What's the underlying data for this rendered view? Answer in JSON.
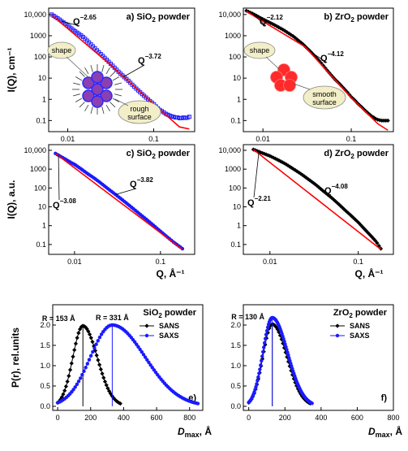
{
  "chart_data": [
    {
      "id": "a",
      "type": "scatter",
      "title": "a) SiO2 powder",
      "ylabel": "I(Q), cm⁻¹",
      "xlabel": "",
      "xscale": "log",
      "yscale": "log",
      "xlim": [
        0.006,
        0.3
      ],
      "ylim": [
        0.03,
        20000
      ],
      "xticks": [
        "0.01",
        "0.1"
      ],
      "yticks": [
        "0.1",
        "1",
        "10",
        "100",
        "1000",
        "10,000"
      ],
      "series": [
        {
          "name": "data",
          "color": "#1a1aff",
          "marker": "square",
          "x": [
            0.0065,
            0.008,
            0.01,
            0.012,
            0.015,
            0.018,
            0.022,
            0.027,
            0.033,
            0.04,
            0.05,
            0.06,
            0.07,
            0.08,
            0.09,
            0.1,
            0.11,
            0.12,
            0.13,
            0.14,
            0.15,
            0.16,
            0.17,
            0.18,
            0.19,
            0.2,
            0.21,
            0.22,
            0.24,
            0.26
          ],
          "y": [
            10000,
            5800,
            3000,
            1700,
            900,
            450,
            200,
            90,
            40,
            18,
            8,
            3.8,
            2.1,
            1.3,
            0.85,
            0.6,
            0.4,
            0.3,
            0.25,
            0.2,
            0.18,
            0.16,
            0.15,
            0.14,
            0.14,
            0.13,
            0.13,
            0.14,
            0.13,
            0.15
          ]
        },
        {
          "name": "fit",
          "color": "#ff0000",
          "marker": "line",
          "x": [
            0.0065,
            0.03,
            0.1,
            0.2,
            0.26
          ],
          "y": [
            9500,
            50,
            0.6,
            0.05,
            0.04
          ]
        }
      ],
      "annotations": [
        {
          "base": "Q",
          "exp": "−2.65"
        },
        {
          "base": "Q",
          "exp": "−3.72"
        }
      ],
      "bubbles": [
        "shape",
        "rough surface"
      ]
    },
    {
      "id": "b",
      "type": "scatter",
      "title": "b) ZrO2 powder",
      "ylabel": "",
      "xlabel": "",
      "xscale": "log",
      "yscale": "log",
      "xlim": [
        0.006,
        0.3
      ],
      "ylim": [
        0.03,
        20000
      ],
      "xticks": [
        "0.01",
        "0.1"
      ],
      "yticks": [
        "0.1",
        "1",
        "10",
        "100",
        "1000",
        "10,000"
      ],
      "series": [
        {
          "name": "data",
          "color": "#000000",
          "marker": "diamond",
          "x": [
            0.0065,
            0.008,
            0.01,
            0.013,
            0.017,
            0.022,
            0.028,
            0.035,
            0.045,
            0.055,
            0.065,
            0.075,
            0.09,
            0.1,
            0.11,
            0.12,
            0.13,
            0.14,
            0.15,
            0.16,
            0.17,
            0.18,
            0.19,
            0.2,
            0.22,
            0.24,
            0.26
          ],
          "y": [
            15000,
            10000,
            6000,
            3500,
            1900,
            950,
            420,
            170,
            55,
            20,
            9,
            5,
            2.2,
            1.3,
            0.9,
            0.6,
            0.45,
            0.33,
            0.25,
            0.2,
            0.16,
            0.14,
            0.12,
            0.11,
            0.1,
            0.1,
            0.1
          ]
        },
        {
          "name": "fit",
          "color": "#ff0000",
          "marker": "line",
          "x": [
            0.0065,
            0.03,
            0.1,
            0.2,
            0.26
          ],
          "y": [
            14000,
            300,
            1.2,
            0.07,
            0.035
          ]
        }
      ],
      "annotations": [
        {
          "base": "Q",
          "exp": "−2.12"
        },
        {
          "base": "Q",
          "exp": "−4.12"
        }
      ],
      "bubbles": [
        "shape",
        "smooth surface"
      ]
    },
    {
      "id": "c",
      "type": "scatter",
      "title": "c) SiO2 powder",
      "ylabel": "I(Q),  a.u.",
      "xlabel": "Q,  Å⁻¹",
      "xscale": "log",
      "yscale": "log",
      "xlim": [
        0.005,
        0.25
      ],
      "ylim": [
        0.03,
        20000
      ],
      "xticks": [
        "0.01",
        "0.1"
      ],
      "yticks": [
        "0.1",
        "1",
        "10",
        "100",
        "1000",
        "10,000"
      ],
      "series": [
        {
          "name": "data",
          "color": "#1a1aff",
          "marker": "circle",
          "x": [
            0.006,
            0.007,
            0.008,
            0.009,
            0.01,
            0.012,
            0.014,
            0.017,
            0.02,
            0.025,
            0.03,
            0.035,
            0.04,
            0.05,
            0.06,
            0.07,
            0.08,
            0.1,
            0.12,
            0.14,
            0.16,
            0.18
          ],
          "y": [
            6800,
            4500,
            3200,
            2300,
            1800,
            1000,
            600,
            330,
            190,
            85,
            45,
            26,
            16,
            7,
            3.5,
            2,
            1.2,
            0.5,
            0.25,
            0.14,
            0.09,
            0.06
          ]
        },
        {
          "name": "fit",
          "color": "#ff0000",
          "marker": "line",
          "x": [
            0.006,
            0.18
          ],
          "y": [
            6800,
            0.055
          ]
        }
      ],
      "annotations": [
        {
          "base": "Q",
          "exp": "−3.08"
        },
        {
          "base": "Q",
          "exp": "−3.82"
        }
      ]
    },
    {
      "id": "d",
      "type": "scatter",
      "title": "d) ZrO2 powder",
      "ylabel": "",
      "xlabel": "Q,  Å⁻¹",
      "xscale": "log",
      "yscale": "log",
      "xlim": [
        0.005,
        0.25
      ],
      "ylim": [
        0.03,
        20000
      ],
      "xticks": [
        "0.01",
        "0.1"
      ],
      "yticks": [
        "0.1",
        "1",
        "10",
        "100",
        "1000",
        "10,000"
      ],
      "series": [
        {
          "name": "data",
          "color": "#000000",
          "marker": "diamond",
          "x": [
            0.0065,
            0.008,
            0.01,
            0.012,
            0.015,
            0.018,
            0.022,
            0.027,
            0.033,
            0.04,
            0.05,
            0.06,
            0.07,
            0.08,
            0.1,
            0.12,
            0.14,
            0.16,
            0.18
          ],
          "y": [
            11000,
            7500,
            5000,
            3300,
            1900,
            1100,
            600,
            300,
            150,
            70,
            30,
            14,
            7,
            4,
            1.5,
            0.6,
            0.28,
            0.14,
            0.06
          ]
        },
        {
          "name": "fit",
          "color": "#ff0000",
          "marker": "line",
          "x": [
            0.0065,
            0.18
          ],
          "y": [
            11000,
            0.055
          ]
        }
      ],
      "annotations": [
        {
          "base": "Q",
          "exp": "−2.21"
        },
        {
          "base": "Q",
          "exp": "−4.08"
        }
      ]
    },
    {
      "id": "e",
      "type": "line",
      "title": "SiO2 powder",
      "panel_letter": "e)",
      "ylabel": "P(r), rel.units",
      "xlabel": "Dmax,  Å",
      "xlim": [
        -30,
        880
      ],
      "ylim": [
        -0.1,
        2.5
      ],
      "xticks": [
        0,
        200,
        400,
        600,
        800
      ],
      "yticks": [
        0.0,
        0.5,
        1.0,
        1.5,
        2.0
      ],
      "legend_position": "top-right",
      "series": [
        {
          "name": "SANS",
          "color": "#000000",
          "marker": "diamond",
          "peak_x": 153,
          "peak_y": 1.98,
          "x_end": 380
        },
        {
          "name": "SAXS",
          "color": "#1a1aff",
          "marker": "circle",
          "peak_x": 331,
          "peak_y": 2.0,
          "x_end": 850
        }
      ],
      "peak_labels": [
        "R = 153 Å",
        "R = 331 Å"
      ]
    },
    {
      "id": "f",
      "type": "line",
      "title": "ZrO2 powder",
      "panel_letter": "f)",
      "ylabel": "",
      "xlabel": "Dmax,  Å",
      "xlim": [
        -30,
        800
      ],
      "ylim": [
        -0.1,
        2.5
      ],
      "xticks": [
        0,
        200,
        400,
        600,
        800
      ],
      "yticks": [
        0.0,
        0.5,
        1.0,
        1.5,
        2.0
      ],
      "legend_position": "top-right",
      "series": [
        {
          "name": "SANS",
          "color": "#000000",
          "marker": "diamond",
          "peak_x": 130,
          "peak_y": 2.02,
          "x_end": 340
        },
        {
          "name": "SAXS",
          "color": "#1a1aff",
          "marker": "circle",
          "peak_x": 130,
          "peak_y": 2.18,
          "x_end": 350
        }
      ],
      "peak_labels": [
        "R = 130 Å"
      ]
    }
  ]
}
